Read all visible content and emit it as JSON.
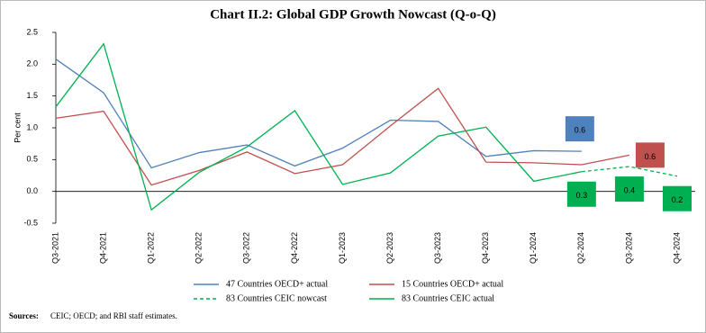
{
  "chart_data": {
    "type": "line",
    "title": "Chart II.2: Global GDP Growth Nowcast (Q-o-Q)",
    "y_label": "Per cent",
    "categories": [
      "Q3-2021",
      "Q4-2021",
      "Q1-2022",
      "Q2-2022",
      "Q3-2022",
      "Q4-2022",
      "Q1-2023",
      "Q2-2023",
      "Q3-2023",
      "Q4-2023",
      "Q1-2024",
      "Q2-2024",
      "Q3-2024",
      "Q4-2024"
    ],
    "series": [
      {
        "name": "47 Countries OECD+ actual",
        "color": "#4f81bd",
        "values": [
          2.08,
          1.55,
          0.37,
          0.61,
          0.73,
          0.4,
          0.68,
          1.12,
          1.1,
          0.55,
          0.64,
          0.63,
          null,
          null
        ],
        "value_labels": [
          null,
          null,
          null,
          null,
          null,
          null,
          null,
          null,
          null,
          null,
          null,
          "0.6",
          null,
          null
        ]
      },
      {
        "name": "15 Countries OECD+ actual",
        "color": "#c0504d",
        "values": [
          1.15,
          1.26,
          0.1,
          0.33,
          0.62,
          0.28,
          0.42,
          1.03,
          1.62,
          0.46,
          0.45,
          0.42,
          0.57,
          null
        ],
        "value_labels": [
          null,
          null,
          null,
          null,
          null,
          null,
          null,
          null,
          null,
          null,
          null,
          null,
          "0.6",
          null
        ]
      },
      {
        "name": "83 Countries CEIC nowcast",
        "color": "#00b050",
        "dashed": true,
        "values": [
          null,
          null,
          null,
          null,
          null,
          null,
          null,
          null,
          null,
          null,
          null,
          0.31,
          0.39,
          0.24
        ],
        "value_labels": [
          null,
          null,
          null,
          null,
          null,
          null,
          null,
          null,
          null,
          null,
          null,
          "0.3",
          "0.4",
          "0.2"
        ]
      },
      {
        "name": "83 Countries CEIC actual",
        "color": "#00b050",
        "values": [
          1.33,
          2.32,
          -0.29,
          0.3,
          0.7,
          1.27,
          0.11,
          0.29,
          0.87,
          1.01,
          0.16,
          0.31,
          null,
          null
        ]
      }
    ],
    "ylim": [
      -0.5,
      2.5
    ],
    "yticks": [
      -0.5,
      {
        "value": 0,
        "label": "0.0"
      },
      0.5,
      {
        "value": 1,
        "label": "1.0"
      },
      1.5,
      {
        "value": 2,
        "label": "2.0"
      },
      2.5
    ],
    "source_label": "Sources:",
    "source": "CEIC; OECD; and RBI staff estimates."
  }
}
